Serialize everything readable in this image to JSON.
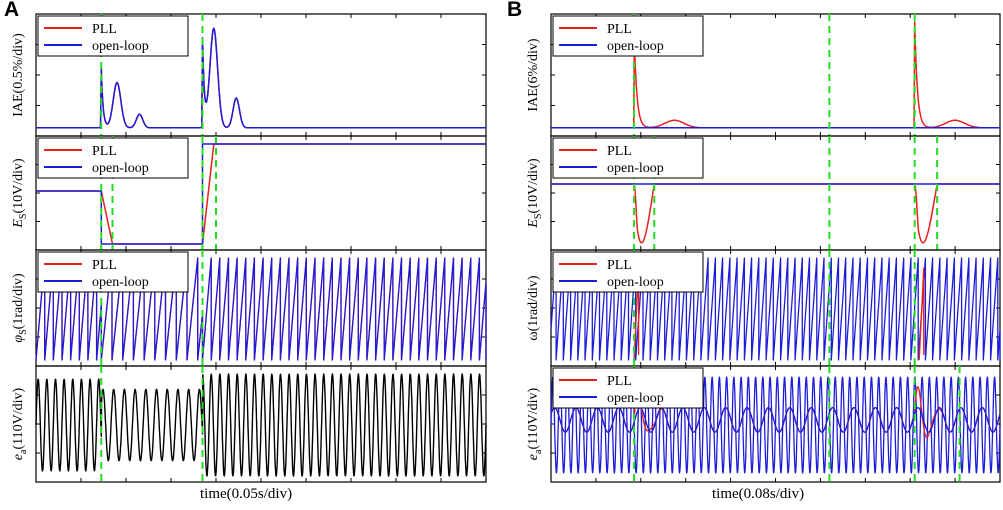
{
  "chart_data": [
    {
      "type": "line",
      "panel": "A",
      "xlabel": "time(0.05s/div)",
      "event_markers": [
        0.145,
        0.37,
        0.4
      ],
      "subplots": [
        {
          "ylabel_main": "IAE(0.5%/div)",
          "ylabel_sub": "",
          "legend": [
            "PLL",
            "open-loop"
          ],
          "legend_colors": [
            "#e8201e",
            "#1d1dd9"
          ],
          "kind": "iae",
          "spikes": [
            {
              "t": 0.145,
              "height": 0.55
            },
            {
              "t": 0.37,
              "height": 0.82
            }
          ],
          "bumps": [
            {
              "t": 0.18,
              "height": 0.42,
              "width": 0.012
            },
            {
              "t": 0.395,
              "height": 0.92,
              "width": 0.012
            }
          ],
          "markers": [
            0.145,
            0.37
          ]
        },
        {
          "ylabel_main": "E",
          "ylabel_sub": "S",
          "ylabel_tail": "(10V/div)",
          "legend": [
            "PLL",
            "open-loop"
          ],
          "legend_colors": [
            "#e8201e",
            "#1d1dd9"
          ],
          "kind": "ramp",
          "pll": [
            [
              0,
              0.53
            ],
            [
              0.145,
              0.53
            ],
            [
              0.17,
              0.0
            ],
            [
              0.37,
              0.0
            ],
            [
              0.395,
              1.0
            ],
            [
              1,
              1.0
            ]
          ],
          "openloop": [
            [
              0,
              0.53
            ],
            [
              0.145,
              0.53
            ],
            [
              0.145,
              0.0
            ],
            [
              0.37,
              0.0
            ],
            [
              0.37,
              1.0
            ],
            [
              1,
              1.0
            ]
          ],
          "markers": [
            0.145,
            0.17,
            0.37,
            0.4
          ]
        },
        {
          "ylabel_main": "φ",
          "ylabel_sub": "S",
          "ylabel_tail": "(1rad/div)",
          "legend": [
            "PLL",
            "open-loop"
          ],
          "legend_colors": [
            "#e8201e",
            "#1d1dd9"
          ],
          "kind": "sawtooth",
          "segments": [
            {
              "t0": 0,
              "t1": 0.145,
              "freq": 52
            },
            {
              "t0": 0.145,
              "t1": 0.37,
              "freq": 42
            },
            {
              "t0": 0.37,
              "t1": 1,
              "freq": 52
            }
          ],
          "markers": [
            0.145,
            0.37
          ]
        },
        {
          "ylabel_main": "e",
          "ylabel_sub": "a",
          "ylabel_tail": "(110V/div)",
          "legend": [],
          "legend_colors": [],
          "kind": "sine",
          "line_color": "#000000",
          "segments": [
            {
              "t0": 0,
              "t1": 0.145,
              "freq": 52,
              "amp": 0.9
            },
            {
              "t0": 0.145,
              "t1": 0.37,
              "freq": 42,
              "amp": 0.7
            },
            {
              "t0": 0.37,
              "t1": 1,
              "freq": 52,
              "amp": 1.0
            }
          ],
          "markers": [
            0.145,
            0.37
          ]
        }
      ]
    },
    {
      "type": "line",
      "panel": "B",
      "xlabel": "time(0.08s/div)",
      "event_markers": [
        0.185,
        0.62,
        0.82
      ],
      "subplots": [
        {
          "ylabel_main": "IAE(6%/div)",
          "ylabel_sub": "",
          "legend": [
            "PLL",
            "open-loop"
          ],
          "legend_colors": [
            "#e8201e",
            "#1d1dd9"
          ],
          "kind": "iae_b",
          "spikes": [
            {
              "t": 0.185,
              "height": 0.9
            },
            {
              "t": 0.81,
              "height": 0.99
            }
          ],
          "markers": [
            0.185,
            0.62,
            0.81
          ]
        },
        {
          "ylabel_main": "E",
          "ylabel_sub": "S",
          "ylabel_tail": "(10V/div)",
          "legend": [
            "PLL",
            "open-loop"
          ],
          "legend_colors": [
            "#e8201e",
            "#1d1dd9"
          ],
          "kind": "dip",
          "level": 0.6,
          "dips": [
            {
              "t0": 0.185,
              "t1": 0.23
            },
            {
              "t0": 0.81,
              "t1": 0.86
            }
          ],
          "markers": [
            0.185,
            0.23,
            0.62,
            0.81,
            0.86
          ]
        },
        {
          "ylabel_main": "ω(1rad/div)",
          "ylabel_sub": "",
          "legend": [
            "PLL",
            "open-loop"
          ],
          "legend_colors": [
            "#e8201e",
            "#1d1dd9"
          ],
          "kind": "sawtooth_b",
          "segments": [
            {
              "t0": 0,
              "t1": 1,
              "freq": 62
            }
          ],
          "markers": [
            0.185,
            0.62,
            0.81
          ]
        },
        {
          "ylabel_main": "e",
          "ylabel_sub": "a",
          "ylabel_tail": "(110V/div)",
          "legend": [
            "PLL",
            "open-loop"
          ],
          "legend_colors": [
            "#e8201e",
            "#1d1dd9"
          ],
          "kind": "sine_b",
          "markers": [
            0.185,
            0.62,
            0.81,
            0.91
          ]
        }
      ]
    }
  ]
}
